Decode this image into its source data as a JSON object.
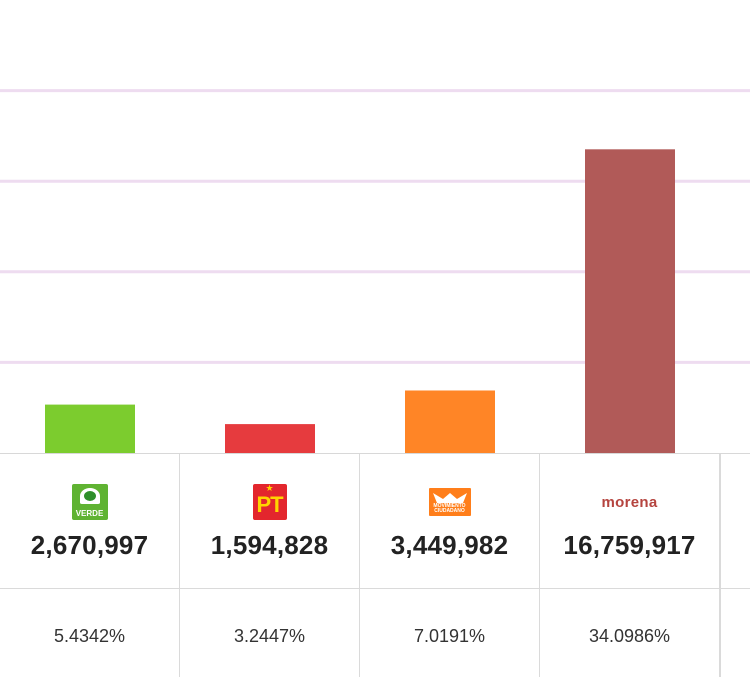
{
  "chart_data": {
    "type": "bar",
    "categories": [
      "VERDE",
      "PT",
      "MOVIMIENTO CIUDADANO",
      "morena"
    ],
    "values": [
      2670997,
      1594828,
      3449982,
      16759917
    ],
    "ylim": [
      0,
      25000000
    ],
    "grid": true,
    "colors": [
      "#7ccc2e",
      "#e63b3e",
      "#ff8526",
      "#b15a58"
    ]
  },
  "parties": [
    {
      "name": "VERDE",
      "logo_text": "VERDE",
      "logo_icon": "verde-logo-icon",
      "votes": "2,670,997",
      "percent": "5.4342%"
    },
    {
      "name": "PT",
      "logo_text": "PT",
      "logo_icon": "pt-logo-icon",
      "votes": "1,594,828",
      "percent": "3.2447%"
    },
    {
      "name": "MOVIMIENTO CIUDADANO",
      "logo_text": "MOVIMIENTO CIUDADANO",
      "logo_icon": "movimiento-ciudadano-logo-icon",
      "votes": "3,449,982",
      "percent": "7.0191%"
    },
    {
      "name": "morena",
      "logo_text": "morena",
      "logo_icon": "morena-logo-icon",
      "votes": "16,759,917",
      "percent": "34.0986%"
    }
  ],
  "grid_color": "#eedcf0",
  "border_color": "#dadada"
}
